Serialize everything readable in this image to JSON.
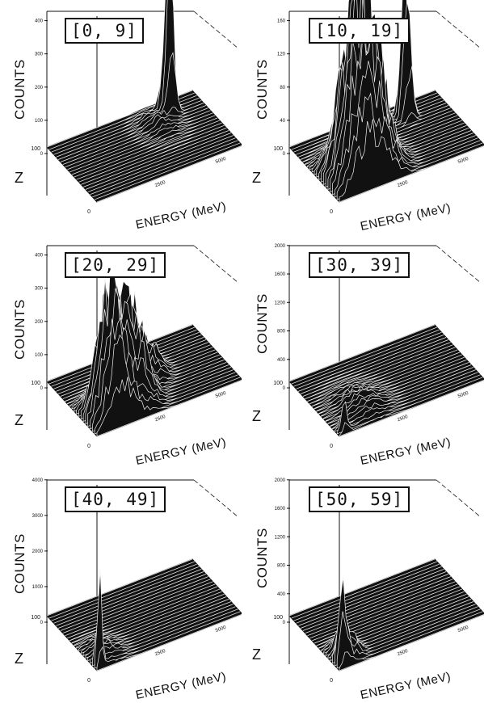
{
  "chart_data": [
    {
      "type": "surface3d",
      "title": "[0, 9]",
      "ylabel": "COUNTS",
      "xlabel": "ENERGY (MeV)",
      "zlabel": "Z",
      "z_ticks": [
        "100",
        "0"
      ],
      "x_ticks": [
        "2500",
        "5000"
      ],
      "y_ticks": [
        "0",
        "100",
        "200",
        "300",
        "400"
      ],
      "ylim": [
        0,
        450
      ],
      "peaks": [
        {
          "z": 85,
          "energy": 4700,
          "counts": 440,
          "width": 0.05
        },
        {
          "z": 70,
          "energy": 4000,
          "counts": 30,
          "width": 0.15
        }
      ]
    },
    {
      "type": "surface3d",
      "title": "[10, 19]",
      "ylabel": "COUNTS",
      "xlabel": "ENERGY (MeV)",
      "zlabel": "Z",
      "z_ticks": [
        "100",
        "0"
      ],
      "x_ticks": [
        "2500",
        "5000"
      ],
      "y_ticks": [
        "0",
        "40",
        "80",
        "120",
        "160"
      ],
      "ylim": [
        0,
        180
      ],
      "peaks": [
        {
          "z": 80,
          "energy": 4400,
          "counts": 170,
          "width": 0.05
        },
        {
          "z": 25,
          "energy": 1200,
          "counts": 150,
          "width": 0.18
        },
        {
          "z": 35,
          "energy": 2000,
          "counts": 120,
          "width": 0.18
        }
      ]
    },
    {
      "type": "surface3d",
      "title": "[20, 29]",
      "ylabel": "COUNTS",
      "xlabel": "ENERGY (MeV)",
      "zlabel": "Z",
      "z_ticks": [
        "100",
        "0"
      ],
      "x_ticks": [
        "2500",
        "5000"
      ],
      "y_ticks": [
        "0",
        "100",
        "200",
        "300",
        "400"
      ],
      "ylim": [
        0,
        450
      ],
      "peaks": [
        {
          "z": 20,
          "energy": 1000,
          "counts": 330,
          "width": 0.15
        },
        {
          "z": 35,
          "energy": 2100,
          "counts": 280,
          "width": 0.15
        },
        {
          "z": 60,
          "energy": 3300,
          "counts": 100,
          "width": 0.12
        }
      ]
    },
    {
      "type": "surface3d",
      "title": "[30, 39]",
      "ylabel": "COUNTS",
      "xlabel": "ENERGY (MeV)",
      "zlabel": "Z",
      "z_ticks": [
        "100",
        "0"
      ],
      "x_ticks": [
        "2500",
        "5000"
      ],
      "y_ticks": [
        "0",
        "400",
        "800",
        "1200",
        "1600",
        "2000"
      ],
      "ylim": [
        0,
        2100
      ],
      "peaks": [
        {
          "z": 30,
          "energy": 1500,
          "counts": 150,
          "width": 0.2
        },
        {
          "z": 5,
          "energy": 300,
          "counts": 300,
          "width": 0.04
        }
      ]
    },
    {
      "type": "surface3d",
      "title": "[40, 49]",
      "ylabel": "COUNTS",
      "xlabel": "ENERGY (MeV)",
      "zlabel": "Z",
      "z_ticks": [
        "100",
        "0"
      ],
      "x_ticks": [
        "2500",
        "5000"
      ],
      "y_ticks": [
        "0",
        "1000",
        "2000",
        "3000",
        "4000"
      ],
      "ylim": [
        0,
        4200
      ],
      "peaks": [
        {
          "z": 5,
          "energy": 200,
          "counts": 2000,
          "width": 0.03
        },
        {
          "z": 20,
          "energy": 700,
          "counts": 250,
          "width": 0.15
        }
      ]
    },
    {
      "type": "surface3d",
      "title": "[50, 59]",
      "ylabel": "COUNTS",
      "xlabel": "ENERGY (MeV)",
      "zlabel": "Z",
      "z_ticks": [
        "100",
        "0"
      ],
      "x_ticks": [
        "2500",
        "5000"
      ],
      "y_ticks": [
        "0",
        "400",
        "800",
        "1200",
        "1600",
        "2000"
      ],
      "ylim": [
        0,
        2100
      ],
      "peaks": [
        {
          "z": 8,
          "energy": 300,
          "counts": 800,
          "width": 0.05
        },
        {
          "z": 20,
          "energy": 700,
          "counts": 400,
          "width": 0.1
        }
      ]
    }
  ]
}
